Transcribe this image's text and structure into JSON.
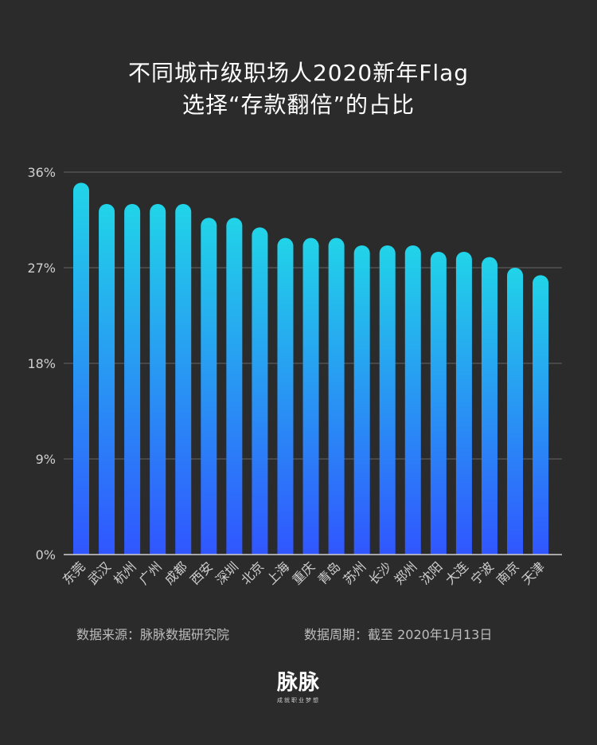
{
  "title_line1": "不同城市级职场人2020新年Flag",
  "title_line2": "选择“存款翻倍”的占比",
  "footer": {
    "source": "数据来源：脉脉数据研究院",
    "period": "数据周期：截至 2020年1月13日"
  },
  "logo": {
    "name": "脉脉",
    "slogan": "成就职业梦想"
  },
  "colors": {
    "background": "#2b2b2b",
    "bar_top": "#21d4e8",
    "bar_bottom": "#3056ff",
    "grid": "#5a5a5a",
    "axis": "#cfcfcf"
  },
  "chart_data": {
    "type": "bar",
    "title": "不同城市级职场人2020新年Flag选择“存款翻倍”的占比",
    "categories": [
      "东莞",
      "武汉",
      "杭州",
      "广州",
      "成都",
      "西安",
      "深圳",
      "北京",
      "上海",
      "重庆",
      "青岛",
      "苏州",
      "长沙",
      "郑州",
      "沈阳",
      "大连",
      "宁波",
      "南京",
      "天津"
    ],
    "values": [
      35.0,
      33.0,
      33.0,
      33.0,
      33.0,
      31.7,
      31.7,
      30.8,
      29.8,
      29.8,
      29.8,
      29.1,
      29.1,
      29.1,
      28.5,
      28.5,
      28.0,
      27.0,
      26.3
    ],
    "yticks": [
      "0%",
      "9%",
      "18%",
      "27%",
      "36%"
    ],
    "ytick_values": [
      0,
      9,
      18,
      27,
      36
    ],
    "ylim": [
      0,
      36
    ],
    "grid": true,
    "legend": "none"
  }
}
